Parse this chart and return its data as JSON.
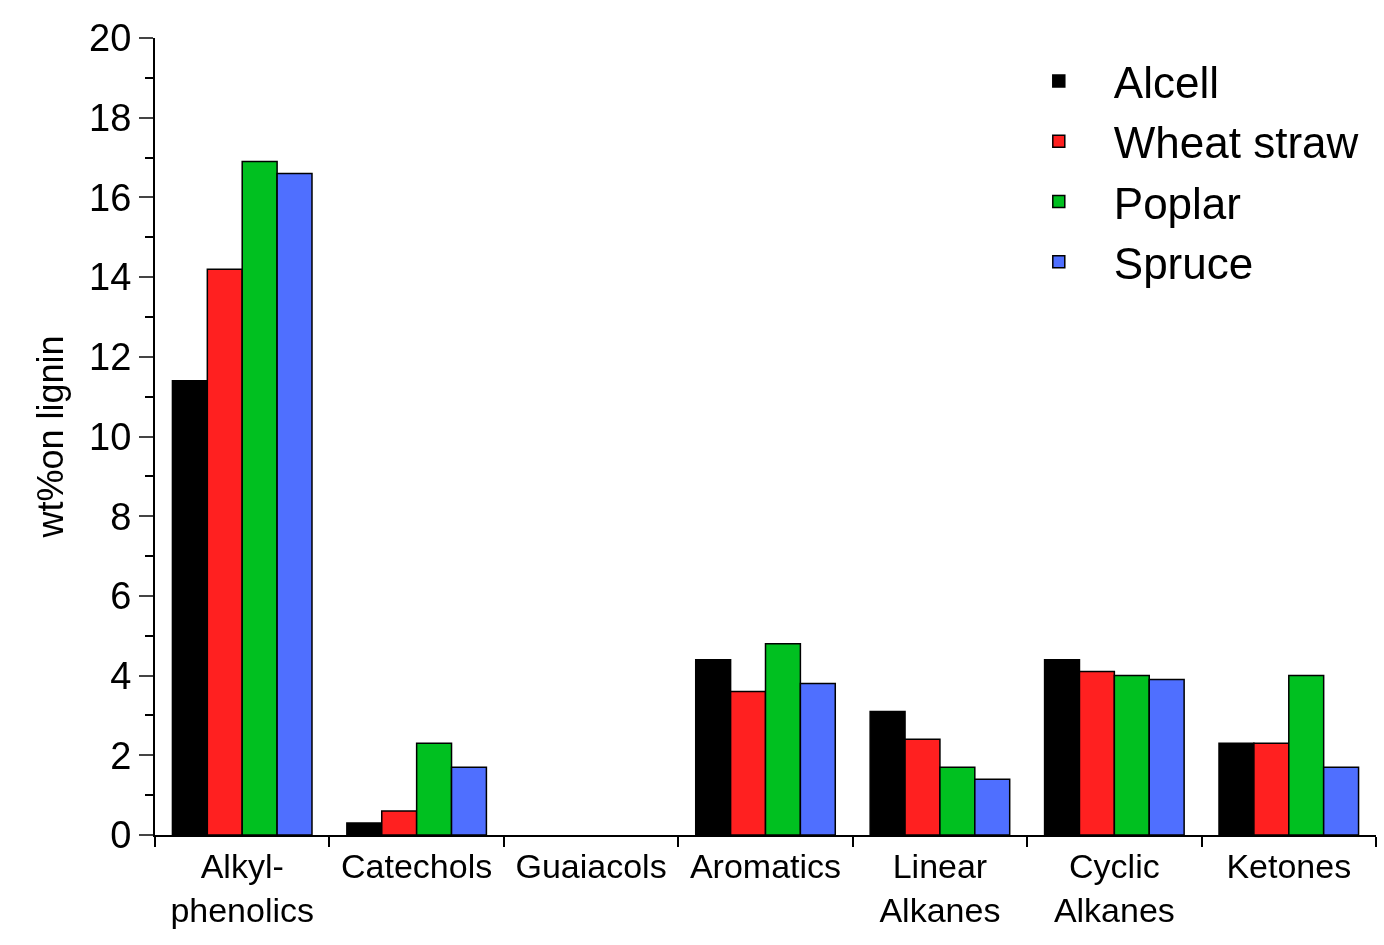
{
  "chart_data": {
    "type": "bar",
    "ylabel": "wt%on lignin",
    "categories": [
      "Alkyl-\nphenolics",
      "Catechols",
      "Guaiacols",
      "Aromatics",
      "Linear\nAlkanes",
      "Cyclic\nAlkanes",
      "Ketones"
    ],
    "series": [
      {
        "name": "Alcell",
        "color": "#000000",
        "values": [
          11.4,
          0.3,
          0,
          4.4,
          3.1,
          4.4,
          2.3
        ]
      },
      {
        "name": "Wheat straw",
        "color": "#ff2020",
        "values": [
          14.2,
          0.6,
          0,
          3.6,
          2.4,
          4.1,
          2.3
        ]
      },
      {
        "name": "Poplar",
        "color": "#00c020",
        "values": [
          16.9,
          2.3,
          0,
          4.8,
          1.7,
          4.0,
          4.0
        ]
      },
      {
        "name": "Spruce",
        "color": "#4f6fff",
        "values": [
          16.6,
          1.7,
          0,
          3.8,
          1.4,
          3.9,
          1.7
        ]
      }
    ],
    "ylim": [
      0,
      20
    ],
    "yticks": [
      0,
      2,
      4,
      6,
      8,
      10,
      12,
      14,
      16,
      18,
      20
    ],
    "legend": "top right"
  }
}
